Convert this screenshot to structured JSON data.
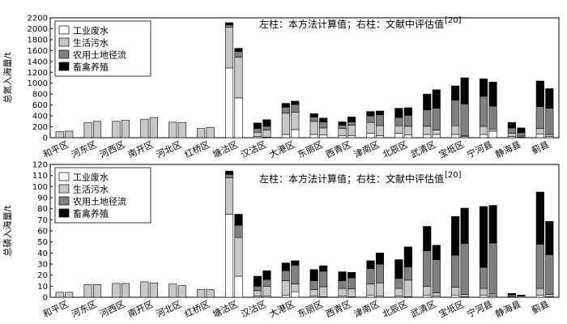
{
  "legend_labels": [
    "工业废水",
    "生活污水",
    "农用土地径流",
    "畜禽养殖"
  ],
  "colors": {
    "industrial": "#ffffff",
    "domestic": "#c8c8c8",
    "agriculture": "#808080",
    "livestock": "#000000"
  },
  "chart_data": [
    {
      "type": "bar",
      "stacked": true,
      "ylabel": "总氮入海量/t",
      "ylim": [
        0,
        2200
      ],
      "yticks": [
        0,
        200,
        400,
        600,
        800,
        1000,
        1200,
        1400,
        1600,
        1800,
        2000,
        2200
      ],
      "note": "左柱：本方法计算值；右柱：文献中评估值",
      "note_ref": "[20]",
      "legend_position": "top-left",
      "categories": [
        "和平区",
        "河东区",
        "河西区",
        "南开区",
        "河北区",
        "红桥区",
        "塘沽区",
        "汉沽区",
        "大港区",
        "东丽区",
        "西青区",
        "津南区",
        "北辰区",
        "武清区",
        "宝坻区",
        "宁河县",
        "静海县",
        "蓟县"
      ],
      "series_names": [
        "工业废水",
        "生活污水",
        "农用土地径流",
        "畜禽养殖"
      ],
      "left": [
        [
          0,
          110,
          0,
          0
        ],
        [
          0,
          280,
          0,
          0
        ],
        [
          0,
          300,
          0,
          0
        ],
        [
          0,
          340,
          0,
          0
        ],
        [
          0,
          285,
          0,
          0
        ],
        [
          0,
          170,
          0,
          0
        ],
        [
          1280,
          750,
          40,
          40
        ],
        [
          20,
          80,
          70,
          100
        ],
        [
          60,
          390,
          110,
          70
        ],
        [
          60,
          240,
          80,
          60
        ],
        [
          40,
          130,
          60,
          60
        ],
        [
          80,
          200,
          120,
          80
        ],
        [
          80,
          140,
          150,
          170
        ],
        [
          60,
          150,
          300,
          290
        ],
        [
          60,
          160,
          470,
          260
        ],
        [
          60,
          150,
          550,
          320
        ],
        [
          20,
          60,
          100,
          100
        ],
        [
          70,
          100,
          400,
          470
        ]
      ],
      "right": [
        [
          0,
          120,
          0,
          0
        ],
        [
          0,
          300,
          0,
          0
        ],
        [
          0,
          320,
          0,
          0
        ],
        [
          0,
          370,
          0,
          0
        ],
        [
          0,
          280,
          0,
          0
        ],
        [
          0,
          190,
          0,
          0
        ],
        [
          730,
          750,
          100,
          60
        ],
        [
          10,
          130,
          70,
          120
        ],
        [
          150,
          320,
          140,
          60
        ],
        [
          50,
          130,
          110,
          70
        ],
        [
          40,
          190,
          60,
          90
        ],
        [
          40,
          180,
          200,
          70
        ],
        [
          50,
          160,
          200,
          140
        ],
        [
          60,
          80,
          400,
          340
        ],
        [
          20,
          20,
          580,
          480
        ],
        [
          120,
          40,
          420,
          440
        ],
        [
          10,
          20,
          60,
          90
        ],
        [
          20,
          40,
          480,
          360
        ]
      ]
    },
    {
      "type": "bar",
      "stacked": true,
      "ylabel": "总磷入海量/t",
      "ylim": [
        0,
        120
      ],
      "yticks": [
        0,
        10,
        20,
        30,
        40,
        50,
        60,
        70,
        80,
        90,
        100,
        110,
        120
      ],
      "note": "左柱：本方法计算值；右柱：文献中评估值",
      "note_ref": "[20]",
      "legend_position": "top-left",
      "categories": [
        "和平区",
        "河东区",
        "河西区",
        "南开区",
        "河北区",
        "红桥区",
        "塘沽区",
        "汉沽区",
        "大港区",
        "东丽区",
        "西青区",
        "津南区",
        "北辰区",
        "武清区",
        "宝坻区",
        "宁河县",
        "静海县",
        "蓟县"
      ],
      "series_names": [
        "工业废水",
        "生活污水",
        "农用土地径流",
        "畜禽养殖"
      ],
      "left": [
        [
          0,
          4.5,
          0,
          0
        ],
        [
          0,
          11.5,
          0,
          0
        ],
        [
          0,
          12.5,
          0,
          0
        ],
        [
          0,
          14,
          0,
          0
        ],
        [
          0,
          12,
          0,
          0
        ],
        [
          0,
          7,
          0,
          0
        ],
        [
          75,
          33,
          3,
          3
        ],
        [
          1,
          5,
          4,
          9
        ],
        [
          2,
          13,
          9,
          7
        ],
        [
          1,
          6,
          8,
          10
        ],
        [
          1,
          7,
          7,
          8
        ],
        [
          2,
          10,
          14,
          7
        ],
        [
          1,
          7,
          9,
          17
        ],
        [
          2,
          8,
          32,
          22
        ],
        [
          2,
          7,
          29,
          35
        ],
        [
          2,
          6,
          19,
          55
        ],
        [
          0.5,
          1,
          1,
          1
        ],
        [
          2,
          6,
          40,
          47
        ]
      ],
      "right": [
        [
          0,
          4.5,
          0,
          0
        ],
        [
          0,
          11.5,
          0,
          0
        ],
        [
          0,
          12.5,
          0,
          0
        ],
        [
          0,
          13,
          0,
          0
        ],
        [
          0,
          10.5,
          0,
          0
        ],
        [
          0,
          7,
          0,
          0
        ],
        [
          19,
          35,
          11,
          10
        ],
        [
          1,
          9,
          6,
          8
        ],
        [
          5,
          7,
          17,
          4
        ],
        [
          0.5,
          9,
          14,
          5
        ],
        [
          0.5,
          7,
          10,
          5
        ],
        [
          1,
          12,
          17,
          10
        ],
        [
          0.5,
          15,
          12,
          18
        ],
        [
          1,
          3,
          30,
          13
        ],
        [
          0.5,
          2,
          46,
          32
        ],
        [
          1,
          2,
          46,
          34
        ],
        [
          0,
          1,
          0.5,
          0.5
        ],
        [
          0.5,
          2,
          36,
          30
        ]
      ]
    }
  ]
}
